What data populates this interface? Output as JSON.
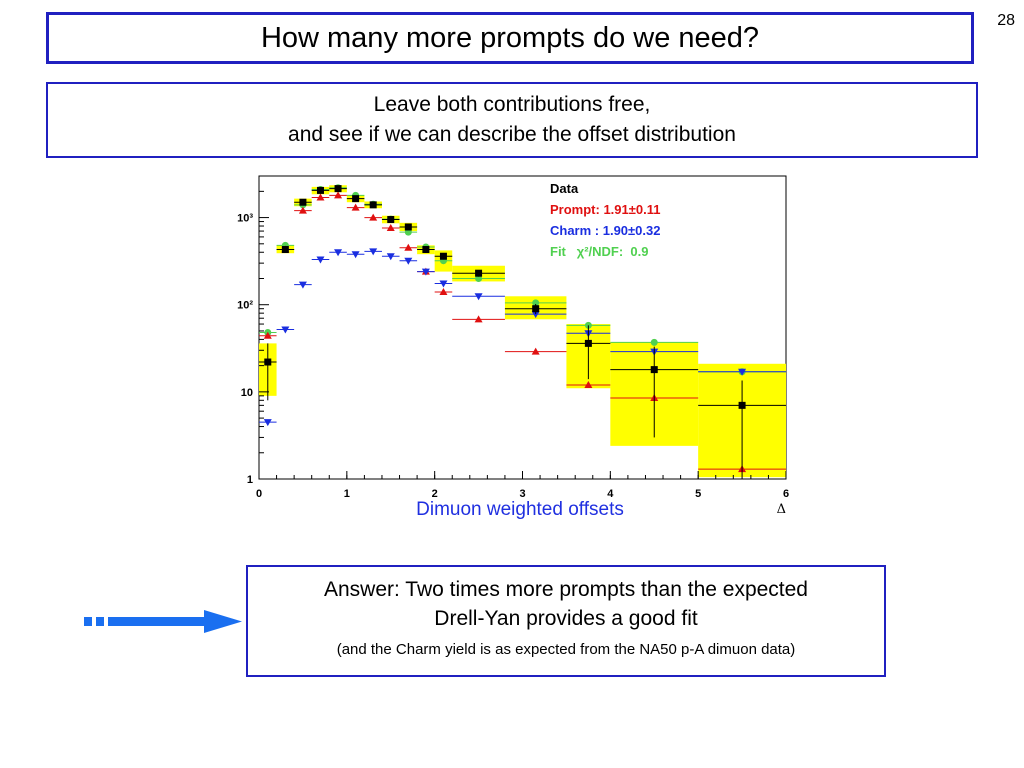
{
  "slide": {
    "page_number": "28",
    "title": "How many more prompts do we need?",
    "subtitle_line1": "Leave both contributions free,",
    "subtitle_line2": "and see if we can describe the offset distribution",
    "xlabel_note": "Dimuon weighted offsets",
    "answer_line1": "Answer: Two times more prompts than the expected",
    "answer_line2": "Drell-Yan provides a good fit",
    "answer_note": "(and the Charm yield is as expected from the NA50 p-A dimuon data)",
    "arrow_color": "#1a6ff0"
  },
  "chart_data": {
    "type": "scatter",
    "x_axis": {
      "label": "Δ",
      "min": 0,
      "max": 6,
      "ticks": [
        "0",
        "1",
        "2",
        "3",
        "4",
        "5",
        "6"
      ]
    },
    "y_axis": {
      "scale": "log",
      "min": 1,
      "max": 3000,
      "ticks": [
        {
          "v": 1,
          "t": "1"
        },
        {
          "v": 10,
          "t": "10"
        },
        {
          "v": 100,
          "t": "10²"
        },
        {
          "v": 1000,
          "t": "10³"
        }
      ]
    },
    "legend": {
      "title": "Data",
      "prompt": "Prompt: 1.91±0.11",
      "charm": "Charm : 1.90±0.32",
      "fit": "Fit   χ²/NDF:  0.9",
      "position": "top-right"
    },
    "colors": {
      "data": "#000000",
      "prompt": "#e01010",
      "charm": "#1a2ee0",
      "fit": "#50d050",
      "band": "#ffff00"
    },
    "bins": [
      {
        "x0": 0.0,
        "x1": 0.2,
        "data": 22,
        "data_err": 14,
        "band_lo": 9,
        "band_hi": 36,
        "prompt": 44,
        "charm": 4.5,
        "fit": 48
      },
      {
        "x0": 0.2,
        "x1": 0.4,
        "data": 430,
        "data_err": 35,
        "band_lo": 390,
        "band_hi": 480,
        "prompt": 430,
        "charm": 52,
        "fit": 480
      },
      {
        "x0": 0.4,
        "x1": 0.6,
        "data": 1500,
        "data_err": 70,
        "band_lo": 1350,
        "band_hi": 1650,
        "prompt": 1200,
        "charm": 170,
        "fit": 1400
      },
      {
        "x0": 0.6,
        "x1": 0.8,
        "data": 2050,
        "data_err": 90,
        "band_lo": 1850,
        "band_hi": 2250,
        "prompt": 1700,
        "charm": 330,
        "fit": 2100
      },
      {
        "x0": 0.8,
        "x1": 1.0,
        "data": 2150,
        "data_err": 90,
        "band_lo": 1950,
        "band_hi": 2350,
        "prompt": 1800,
        "charm": 400,
        "fit": 2200
      },
      {
        "x0": 1.0,
        "x1": 1.2,
        "data": 1650,
        "data_err": 80,
        "band_lo": 1500,
        "band_hi": 1800,
        "prompt": 1300,
        "charm": 380,
        "fit": 1800
      },
      {
        "x0": 1.2,
        "x1": 1.4,
        "data": 1400,
        "data_err": 70,
        "band_lo": 1280,
        "band_hi": 1530,
        "prompt": 1000,
        "charm": 410,
        "fit": 1420
      },
      {
        "x0": 1.4,
        "x1": 1.6,
        "data": 950,
        "data_err": 55,
        "band_lo": 860,
        "band_hi": 1050,
        "prompt": 760,
        "charm": 360,
        "fit": 960
      },
      {
        "x0": 1.6,
        "x1": 1.8,
        "data": 780,
        "data_err": 50,
        "band_lo": 700,
        "band_hi": 870,
        "prompt": 450,
        "charm": 320,
        "fit": 680
      },
      {
        "x0": 1.8,
        "x1": 2.0,
        "data": 430,
        "data_err": 35,
        "band_lo": 380,
        "band_hi": 480,
        "prompt": 240,
        "charm": 240,
        "fit": 460
      },
      {
        "x0": 2.0,
        "x1": 2.2,
        "data": 360,
        "data_err": 30,
        "band_lo": 240,
        "band_hi": 420,
        "prompt": 140,
        "charm": 175,
        "fit": 320
      },
      {
        "x0": 2.2,
        "x1": 2.8,
        "data": 230,
        "data_err": 20,
        "band_lo": 185,
        "band_hi": 280,
        "prompt": 68,
        "charm": 125,
        "fit": 200
      },
      {
        "x0": 2.8,
        "x1": 3.5,
        "data": 90,
        "data_err": 12,
        "band_lo": 68,
        "band_hi": 125,
        "prompt": 29,
        "charm": 78,
        "fit": 105
      },
      {
        "x0": 3.5,
        "x1": 4.0,
        "data": 36,
        "data_err": 22,
        "band_lo": 11,
        "band_hi": 60,
        "prompt": 12,
        "charm": 47,
        "fit": 58
      },
      {
        "x0": 4.0,
        "x1": 5.0,
        "data": 18,
        "data_err": 15,
        "band_lo": 2.4,
        "band_hi": 37,
        "prompt": 8.5,
        "charm": 29,
        "fit": 37
      },
      {
        "x0": 5.0,
        "x1": 6.0,
        "data": 7,
        "data_err": 6.5,
        "band_lo": 1.05,
        "band_hi": 21,
        "prompt": 1.3,
        "charm": 17,
        "fit": 17
      }
    ]
  }
}
